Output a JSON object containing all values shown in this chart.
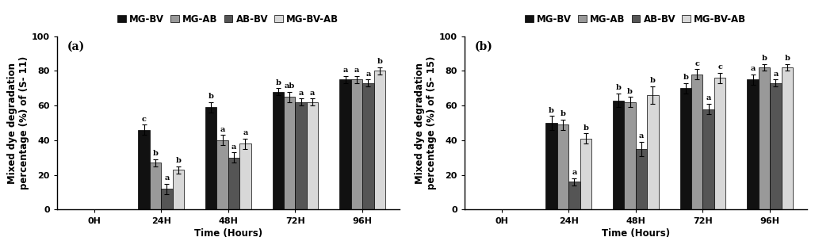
{
  "panel_a": {
    "title": "(a)",
    "ylabel": "Mixed dye degradation\npercentage (%) of (S- 11)",
    "xlabel": "Time (Hours)",
    "categories": [
      "0H",
      "24H",
      "48H",
      "72H",
      "96H"
    ],
    "series": {
      "MG-BV": [
        0,
        46,
        59,
        68,
        75
      ],
      "MG-AB": [
        0,
        27,
        40,
        65,
        75
      ],
      "AB-BV": [
        0,
        12,
        30,
        62,
        73
      ],
      "MG-BV-AB": [
        0,
        23,
        38,
        62,
        80
      ]
    },
    "errors": {
      "MG-BV": [
        0,
        3,
        3,
        2,
        2
      ],
      "MG-AB": [
        0,
        2,
        3,
        3,
        2
      ],
      "AB-BV": [
        0,
        3,
        3,
        2,
        2
      ],
      "MG-BV-AB": [
        0,
        2,
        3,
        2,
        2
      ]
    },
    "letters": {
      "MG-BV": [
        "",
        "c",
        "b",
        "b",
        "a"
      ],
      "MG-AB": [
        "",
        "b",
        "a",
        "ab",
        "a"
      ],
      "AB-BV": [
        "",
        "a",
        "a",
        "a",
        "a"
      ],
      "MG-BV-AB": [
        "",
        "b",
        "a",
        "a",
        "b"
      ]
    }
  },
  "panel_b": {
    "title": "(b)",
    "ylabel": "Mixed dye degradation\npercentage (%) of (S- 15)",
    "xlabel": "Time (Hours)",
    "categories": [
      "0H",
      "24H",
      "48H",
      "72H",
      "96H"
    ],
    "series": {
      "MG-BV": [
        0,
        50,
        63,
        70,
        75
      ],
      "MG-AB": [
        0,
        49,
        62,
        78,
        82
      ],
      "AB-BV": [
        0,
        16,
        35,
        58,
        73
      ],
      "MG-BV-AB": [
        0,
        41,
        66,
        76,
        82
      ]
    },
    "errors": {
      "MG-BV": [
        0,
        4,
        4,
        3,
        3
      ],
      "MG-AB": [
        0,
        3,
        3,
        3,
        2
      ],
      "AB-BV": [
        0,
        2,
        4,
        3,
        2
      ],
      "MG-BV-AB": [
        0,
        3,
        5,
        3,
        2
      ]
    },
    "letters": {
      "MG-BV": [
        "",
        "b",
        "b",
        "b",
        "a"
      ],
      "MG-AB": [
        "",
        "b",
        "b",
        "c",
        "b"
      ],
      "AB-BV": [
        "",
        "a",
        "a",
        "a",
        "a"
      ],
      "MG-BV-AB": [
        "",
        "b",
        "b",
        "c",
        "b"
      ]
    }
  },
  "colors": {
    "MG-BV": "#111111",
    "MG-AB": "#999999",
    "AB-BV": "#555555",
    "MG-BV-AB": "#d8d8d8"
  },
  "legend_labels": [
    "MG-BV",
    "MG-AB",
    "AB-BV",
    "MG-BV-AB"
  ],
  "bar_width": 0.17,
  "ylim": [
    0,
    100
  ],
  "yticks": [
    0,
    20,
    40,
    60,
    80,
    100
  ],
  "background_color": "#ffffff",
  "letter_fontsize": 7,
  "axis_fontsize": 8.5,
  "tick_fontsize": 8,
  "legend_fontsize": 8.5,
  "title_fontsize": 10
}
